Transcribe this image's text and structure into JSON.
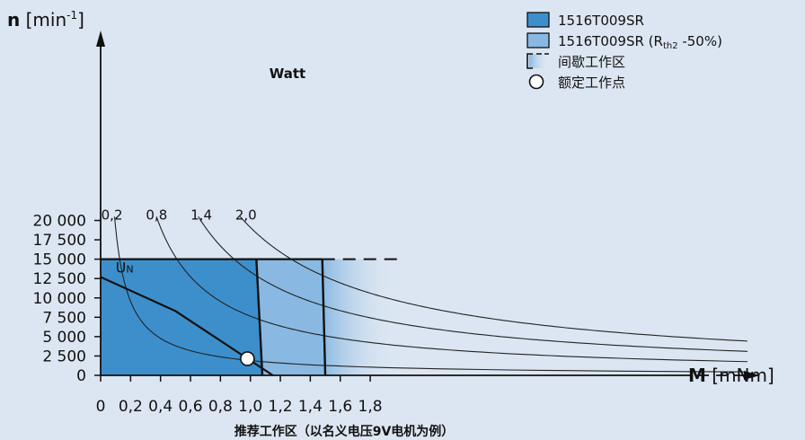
{
  "chart_data": {
    "type": "area",
    "xlabel_bold": "M",
    "xlabel_unit": "[mNm]",
    "ylabel_bold": "n",
    "ylabel_unit": "[min",
    "ylabel_unit_sup": "-1",
    "ylabel_unit_end": "]",
    "xlim": [
      0,
      2.04
    ],
    "ylim": [
      0,
      21500
    ],
    "x_ticks": [
      {
        "value": 0,
        "label": "0"
      },
      {
        "value": 0.2,
        "label": "0,2"
      },
      {
        "value": 0.4,
        "label": "0,4"
      },
      {
        "value": 0.6,
        "label": "0,6"
      },
      {
        "value": 0.8,
        "label": "0,8"
      },
      {
        "value": 1.0,
        "label": "1,0"
      },
      {
        "value": 1.2,
        "label": "1,2"
      },
      {
        "value": 1.4,
        "label": "1,4"
      },
      {
        "value": 1.6,
        "label": "1,6"
      },
      {
        "value": 1.8,
        "label": "1,8"
      }
    ],
    "y_ticks": [
      {
        "value": 0,
        "label": "0"
      },
      {
        "value": 2500,
        "label": "2 500"
      },
      {
        "value": 5000,
        "label": "5 000"
      },
      {
        "value": 7500,
        "label": "7 500"
      },
      {
        "value": 10000,
        "label": "10 000"
      },
      {
        "value": 12500,
        "label": "12 500"
      },
      {
        "value": 15000,
        "label": "15 000"
      },
      {
        "value": 17500,
        "label": "17 500"
      },
      {
        "value": 20000,
        "label": "20 000"
      }
    ],
    "speed_limit": 15000,
    "regions": [
      {
        "name": "1516T009SR",
        "color": "#3d8fcc",
        "polygon": [
          [
            0,
            0
          ],
          [
            0,
            15000
          ],
          [
            1.04,
            15000
          ],
          [
            1.08,
            0
          ]
        ]
      },
      {
        "name": "1516T009SR (Rth2 -50%)",
        "color": "#89b9e2",
        "polygon": [
          [
            1.04,
            15000
          ],
          [
            1.08,
            0
          ],
          [
            1.5,
            0
          ],
          [
            1.48,
            15000
          ]
        ]
      }
    ],
    "intermittent_region": {
      "label": "间歇工作区",
      "x_start": 1.48,
      "x_end": 1.98,
      "y_max": 15000
    },
    "boundaries": [
      {
        "name": "1516T009SR",
        "points": [
          [
            1.04,
            15000
          ],
          [
            1.08,
            0
          ]
        ]
      },
      {
        "name": "1516T009SR (Rth2 -50%)",
        "points": [
          [
            1.48,
            15000
          ],
          [
            1.5,
            0
          ]
        ]
      }
    ],
    "characteristic": {
      "label": "U",
      "label_sub": "N",
      "points": [
        [
          0,
          12700
        ],
        [
          0.5,
          8300
        ],
        [
          1.15,
          0
        ]
      ]
    },
    "operating_point": {
      "label": "额定工作点",
      "x": 0.98,
      "y": 2150
    },
    "power_curves": {
      "title": "Watt",
      "curves": [
        {
          "label": "0,2",
          "watts": 0.2
        },
        {
          "label": "0,8",
          "watts": 0.8
        },
        {
          "label": "1,4",
          "watts": 1.4
        },
        {
          "label": "2,0",
          "watts": 2.0
        }
      ]
    },
    "legend": [
      {
        "kind": "box",
        "color": "#3d8fcc",
        "text": "1516T009SR",
        "sub": "",
        "suffix": ""
      },
      {
        "kind": "box",
        "color": "#89b9e2",
        "text": "1516T009SR (R",
        "sub": "th2",
        "suffix": " -50%)"
      },
      {
        "kind": "gradient",
        "color": "#89b9e2",
        "text": "间歇工作区",
        "sub": "",
        "suffix": ""
      },
      {
        "kind": "circle",
        "color": "#ffffff",
        "text": "额定工作点",
        "sub": "",
        "suffix": ""
      }
    ],
    "footnote": "推荐工作区（以名义电压9V电机为例）"
  }
}
